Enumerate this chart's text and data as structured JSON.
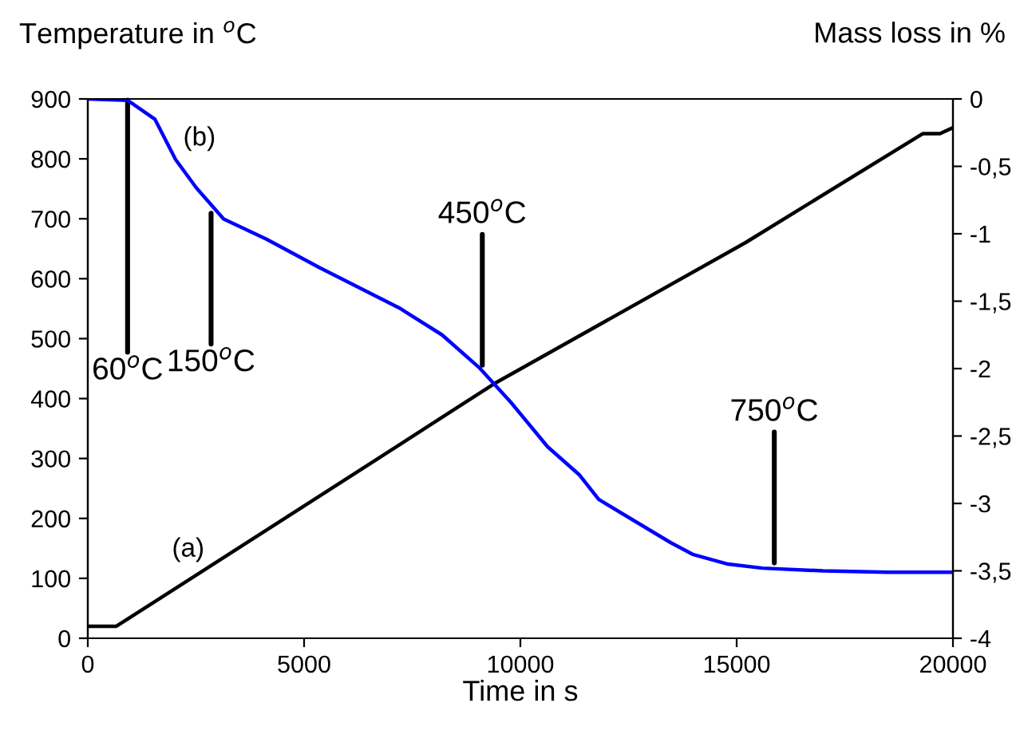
{
  "chart_data": {
    "type": "line",
    "xlabel": "Time in s",
    "ylabel": "Temperature in $^{o}$C",
    "y2label": "Mass loss in %",
    "xlim": [
      0,
      20000
    ],
    "xticks": [
      0,
      5000,
      10000,
      15000,
      20000
    ],
    "ylim": [
      0,
      900
    ],
    "yticks": [
      0,
      100,
      200,
      300,
      400,
      500,
      600,
      700,
      800,
      900
    ],
    "y2lim": [
      -4,
      0
    ],
    "y2ticks": [
      {
        "value": -4,
        "label": "-4"
      },
      {
        "value": -3.5,
        "label": "-3,5"
      },
      {
        "value": -3,
        "label": "-3"
      },
      {
        "value": -2.5,
        "label": "-2,5"
      },
      {
        "value": -2,
        "label": "-2"
      },
      {
        "value": -1.5,
        "label": "-1,5"
      },
      {
        "value": -1,
        "label": "-1"
      },
      {
        "value": -0.5,
        "label": "-0,5"
      },
      0
    ],
    "grid": false,
    "legend": false,
    "marker": "none",
    "line_style": "solid",
    "series": [
      {
        "name": "(a)",
        "color": "#000000",
        "x": [
          0,
          660,
          5980,
          9400,
          15200,
          19300,
          19700,
          20000
        ],
        "values": [
          20,
          20,
          266,
          425,
          660,
          842,
          842,
          852
        ]
      },
      {
        "name": "(b)",
        "color": "#0000ff",
        "axis": "y2",
        "x": [
          0,
          920,
          1550,
          2030,
          2510,
          3140,
          4130,
          5350,
          7200,
          8190,
          9040,
          9780,
          10630,
          11370,
          11810,
          13470,
          14000,
          14800,
          15600,
          17000,
          18500,
          20000
        ],
        "values": [
          0,
          -0.01,
          -0.15,
          -0.45,
          -0.66,
          -0.89,
          -1.04,
          -1.25,
          -1.55,
          -1.75,
          -1.99,
          -2.25,
          -2.58,
          -2.79,
          -2.97,
          -3.29,
          -3.38,
          -3.45,
          -3.48,
          -3.5,
          -3.51,
          -3.51
        ]
      }
    ],
    "annotations": [
      {
        "text": "60$^{o}$C",
        "x": 920,
        "y": 898
      },
      {
        "text": "150$^{o}$C",
        "x": 2850,
        "y": 720
      },
      {
        "text": "450$^{o}$C",
        "x": 9120,
        "y": 445
      },
      {
        "text": "750$^{o}$C",
        "x": 15870,
        "y": 115
      }
    ]
  }
}
